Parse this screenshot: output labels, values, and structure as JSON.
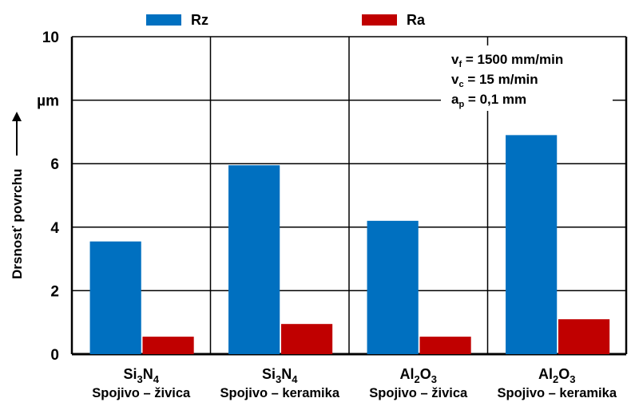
{
  "chart_data": {
    "type": "bar",
    "categories": [
      {
        "formula": [
          "Si",
          "3",
          "N",
          "4"
        ],
        "binder": "Spojivo – živica"
      },
      {
        "formula": [
          "Si",
          "3",
          "N",
          "4"
        ],
        "binder": "Spojivo – keramika"
      },
      {
        "formula": [
          "Al",
          "2",
          "O",
          "3"
        ],
        "binder": "Spojivo – živica"
      },
      {
        "formula": [
          "Al",
          "2",
          "O",
          "3"
        ],
        "binder": "Spojivo – keramika"
      }
    ],
    "series": [
      {
        "name": "Rz",
        "color": "#0070C0",
        "values": [
          3.55,
          5.95,
          4.2,
          6.9
        ]
      },
      {
        "name": "Ra",
        "color": "#C00000",
        "values": [
          0.55,
          0.95,
          0.55,
          1.1
        ]
      }
    ],
    "ylabel": "Drsnosť povrchu",
    "ylim": [
      0,
      10
    ],
    "y_ticks": [
      "0",
      "2",
      "4",
      "6",
      "µm",
      "10"
    ],
    "grid": true,
    "legend_position": "top",
    "annotation": [
      {
        "sym": "v",
        "sub": "f",
        "rest": " = 1500 mm/min"
      },
      {
        "sym": "v",
        "sub": "c",
        "rest": " = 15 m/min"
      },
      {
        "sym": "a",
        "sub": "p",
        "rest": " = 0,1 mm"
      }
    ]
  }
}
